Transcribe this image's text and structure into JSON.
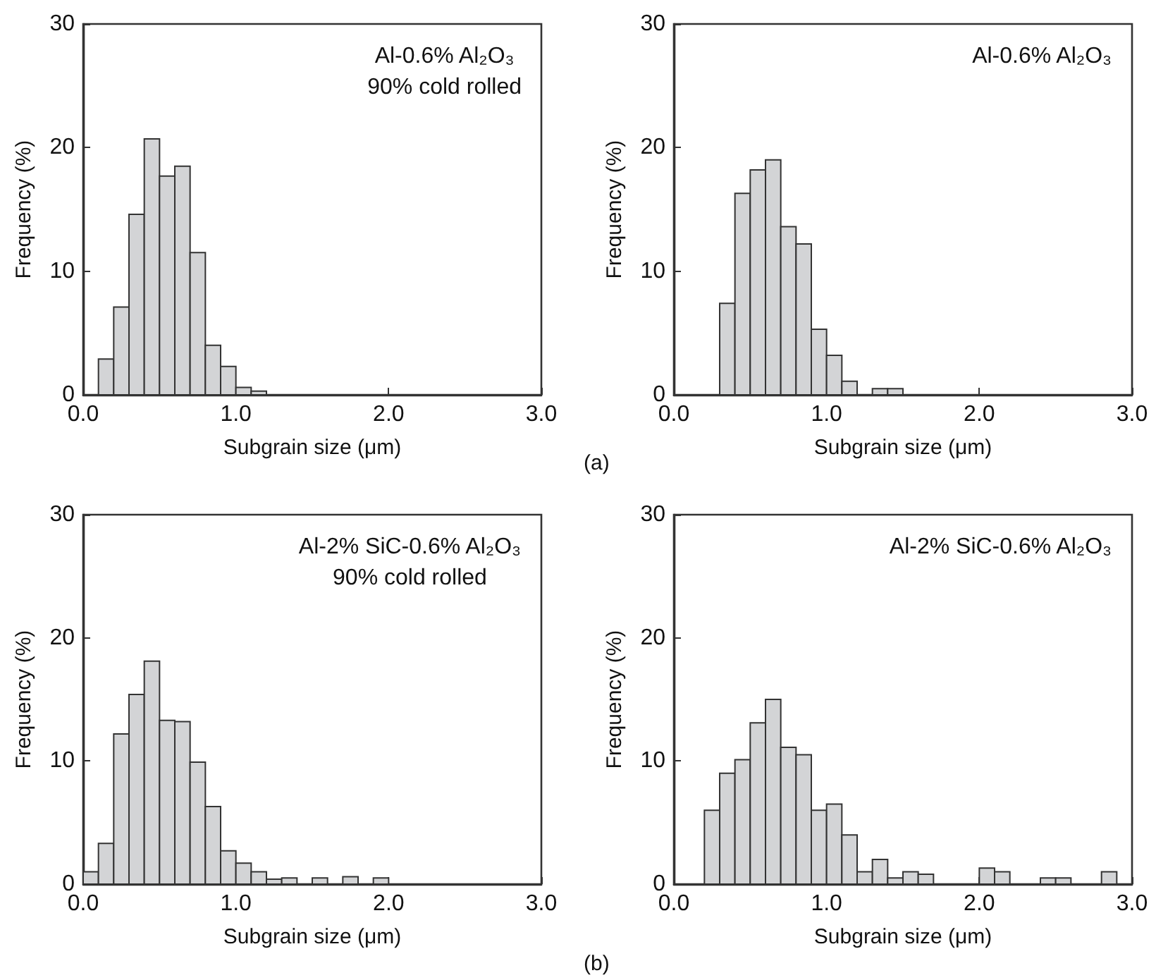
{
  "chart_data": [
    {
      "type": "histogram",
      "xlabel": "Subgrain size (μm)",
      "ylabel": "Frequency (%)",
      "annotations": [
        "Al-0.6% Al₂O₃\n90% cold rolled"
      ],
      "color": "#d3d4d6",
      "bins": [
        0.1,
        0.2,
        0.3,
        0.4,
        0.5,
        0.6,
        0.7,
        0.8,
        0.9,
        1.0,
        1.1,
        1.2
      ],
      "values": [
        2.9,
        7.1,
        14.6,
        20.7,
        17.7,
        18.5,
        11.5,
        4.0,
        2.3,
        0.6,
        0.3
      ],
      "xlim": [
        0,
        3
      ],
      "xticks": [
        {
          "value": 0,
          "label": "0.0"
        },
        {
          "value": 1,
          "label": "1.0"
        },
        {
          "value": 2,
          "label": "2.0"
        },
        {
          "value": 3,
          "label": "3.0"
        }
      ],
      "ylim": [
        0,
        30
      ],
      "yticks": [
        0,
        10,
        20,
        30
      ],
      "grid": false
    },
    {
      "type": "histogram",
      "xlabel": "Subgrain size (μm)",
      "ylabel": "Frequency (%)",
      "annotations": [
        "Al-0.6% Al₂O₃",
        "(a)"
      ],
      "color": "#d3d4d6",
      "bins": [
        0.3,
        0.4,
        0.5,
        0.6,
        0.7,
        0.8,
        0.9,
        1.0,
        1.1,
        1.2,
        1.3,
        1.4,
        1.5
      ],
      "values": [
        7.4,
        16.3,
        18.2,
        19.0,
        13.6,
        12.2,
        5.3,
        3.2,
        1.1,
        0,
        0.5,
        0.5
      ],
      "xlim": [
        0,
        3
      ],
      "xticks": [
        {
          "value": 0,
          "label": "0.0"
        },
        {
          "value": 1,
          "label": "1.0"
        },
        {
          "value": 2,
          "label": "2.0"
        },
        {
          "value": 3,
          "label": "3.0"
        }
      ],
      "ylim": [
        0,
        30
      ],
      "yticks": [
        0,
        10,
        20,
        30
      ],
      "grid": false
    },
    {
      "type": "histogram",
      "xlabel": "Subgrain size (μm)",
      "ylabel": "Frequency (%)",
      "annotations": [
        "Al-2% SiC-0.6% Al₂O₃\n90% cold rolled"
      ],
      "color": "#d3d4d6",
      "bins": [
        0.0,
        0.1,
        0.2,
        0.3,
        0.4,
        0.5,
        0.6,
        0.7,
        0.8,
        0.9,
        1.0,
        1.1,
        1.2,
        1.3,
        1.4,
        1.5,
        1.6,
        1.7,
        1.8,
        1.9,
        2.0
      ],
      "values": [
        1.0,
        3.3,
        12.2,
        15.4,
        18.1,
        13.3,
        13.2,
        9.9,
        6.3,
        2.7,
        1.7,
        1.0,
        0.4,
        0.5,
        0,
        0.5,
        0,
        0.6,
        0,
        0.5
      ],
      "xlim": [
        0,
        3
      ],
      "xticks": [
        {
          "value": 0,
          "label": "0.0"
        },
        {
          "value": 1,
          "label": "1.0"
        },
        {
          "value": 2,
          "label": "2.0"
        },
        {
          "value": 3,
          "label": "3.0"
        }
      ],
      "ylim": [
        0,
        30
      ],
      "yticks": [
        0,
        10,
        20,
        30
      ],
      "grid": false
    },
    {
      "type": "histogram",
      "xlabel": "Subgrain size (μm)",
      "ylabel": "Frequency (%)",
      "annotations": [
        "Al-2% SiC-0.6% Al₂O₃",
        "(b)"
      ],
      "color": "#d3d4d6",
      "bins": [
        0.2,
        0.3,
        0.4,
        0.5,
        0.6,
        0.7,
        0.8,
        0.9,
        1.0,
        1.1,
        1.2,
        1.3,
        1.4,
        1.5,
        1.6,
        1.7,
        1.8,
        1.9,
        2.0,
        2.1,
        2.2,
        2.3,
        2.4,
        2.5,
        2.6,
        2.7,
        2.8,
        2.9
      ],
      "values": [
        6.0,
        9.0,
        10.1,
        13.1,
        15.0,
        11.1,
        10.5,
        6.0,
        6.5,
        4.0,
        1.0,
        2.0,
        0.5,
        1.0,
        0.8,
        0,
        0,
        0,
        1.3,
        1.0,
        0,
        0,
        0.5,
        0.5,
        0,
        0,
        1.0
      ],
      "xlim": [
        0,
        3
      ],
      "xticks": [
        {
          "value": 0,
          "label": "0.0"
        },
        {
          "value": 1,
          "label": "1.0"
        },
        {
          "value": 2,
          "label": "2.0"
        },
        {
          "value": 3,
          "label": "3.0"
        }
      ],
      "ylim": [
        0,
        30
      ],
      "yticks": [
        0,
        10,
        20,
        30
      ],
      "grid": false
    }
  ]
}
